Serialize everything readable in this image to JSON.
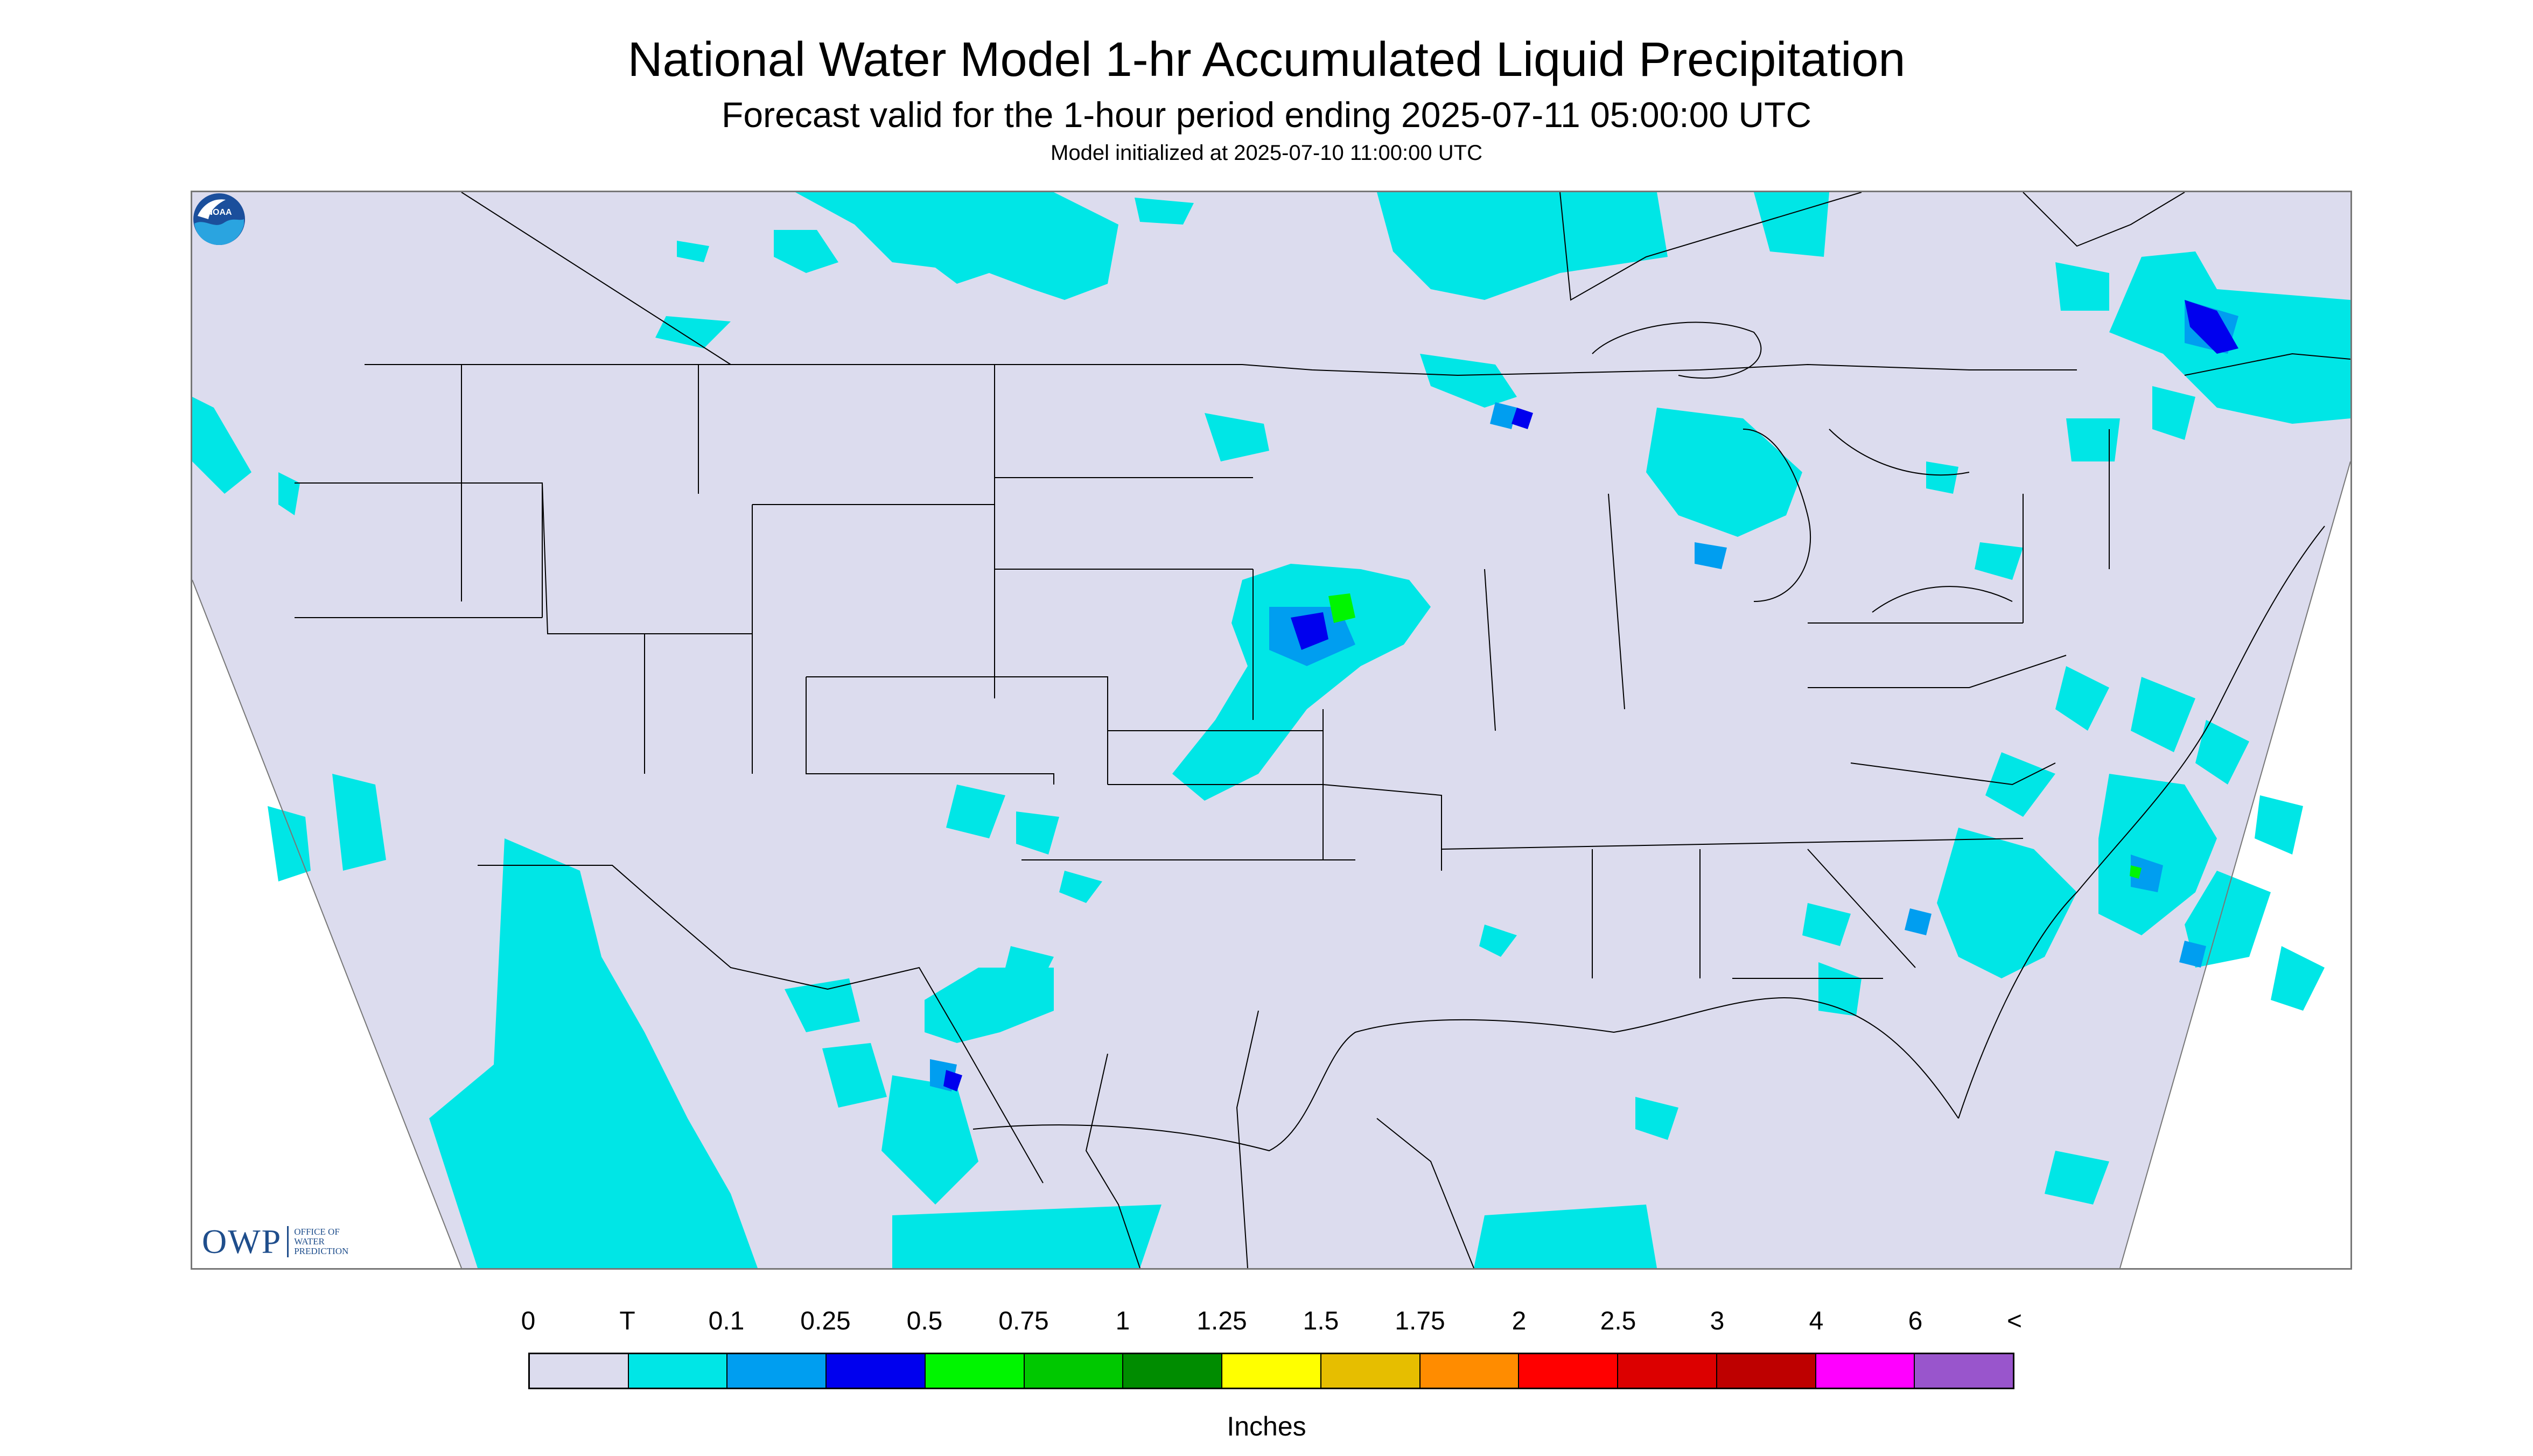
{
  "title": "National Water Model 1-hr Accumulated Liquid Precipitation",
  "subtitle": "Forecast valid for the 1-hour period ending 2025-07-11 05:00:00 UTC",
  "model_init": "Model initialized at 2025-07-10 11:00:00 UTC",
  "logo_left": {
    "mark": "OWP",
    "text": "OFFICE OF WATER PREDICTION"
  },
  "logo_right": {
    "text": "NOAA"
  },
  "legend": {
    "labels": [
      "0",
      "T",
      "0.1",
      "0.25",
      "0.5",
      "0.75",
      "1",
      "1.25",
      "1.5",
      "1.75",
      "2",
      "2.5",
      "3",
      "4",
      "6",
      "<"
    ],
    "colors": [
      "#dcdcee",
      "#00e6e6",
      "#009ef0",
      "#0000ee",
      "#00f500",
      "#00c800",
      "#008c00",
      "#ffff00",
      "#e6be00",
      "#ff8c00",
      "#ff0000",
      "#dc0000",
      "#be0000",
      "#ff00ff",
      "#9955cc"
    ],
    "units": "Inches"
  },
  "map": {
    "background_color": "#dcdcee",
    "outside_color": "#ffffff",
    "boundary_color": "#000000"
  }
}
